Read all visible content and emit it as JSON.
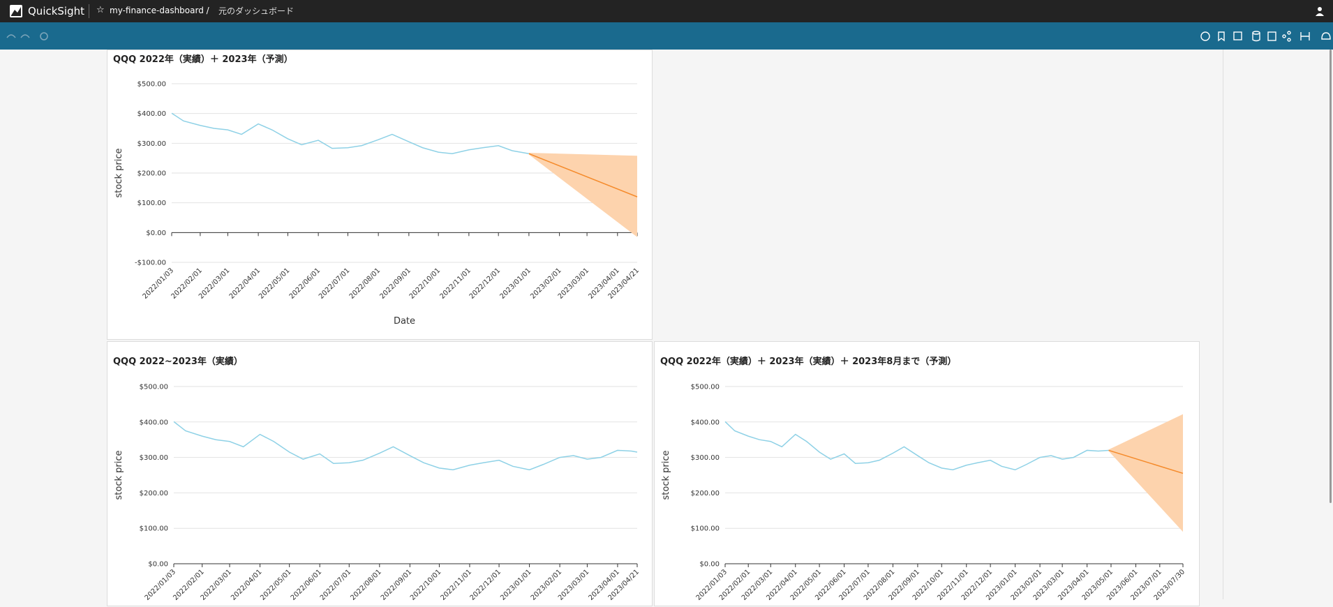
{
  "header": {
    "brand": "QuickSight",
    "dashboard": "my-finance-dashboard /",
    "link": "元のダッシュボード"
  },
  "chart_data": [
    {
      "type": "line",
      "title": "QQQ 2022年（実績）＋ 2023年（予測）",
      "y_label": "stock price",
      "x_label": "Date",
      "ylim": [
        -100,
        500
      ],
      "yticks": [
        {
          "value": -100,
          "label": "-$100.00"
        },
        {
          "value": 0,
          "label": "$0.00"
        },
        {
          "value": 100,
          "label": "$100.00"
        },
        {
          "value": 200,
          "label": "$200.00"
        },
        {
          "value": 300,
          "label": "$300.00"
        },
        {
          "value": 400,
          "label": "$400.00"
        },
        {
          "value": 500,
          "label": "$500.00"
        }
      ],
      "xlim": [
        "2022/01/03",
        "2023/04/21"
      ],
      "xticks": [
        "2022/01/03",
        "2022/02/01",
        "2022/03/01",
        "2022/04/01",
        "2022/05/01",
        "2022/06/01",
        "2022/07/01",
        "2022/08/01",
        "2022/09/01",
        "2022/10/01",
        "2022/11/01",
        "2022/12/01",
        "2023/01/01",
        "2023/02/01",
        "2023/03/01",
        "2023/04/01",
        "2023/04/21"
      ],
      "grid": true,
      "series": [
        {
          "color": "#8ed1e6",
          "x": [
            "2022/01/03",
            "2022/01/15",
            "2022/02/01",
            "2022/02/15",
            "2022/03/01",
            "2022/03/15",
            "2022/04/01",
            "2022/04/15",
            "2022/05/01",
            "2022/05/15",
            "2022/06/01",
            "2022/06/15",
            "2022/07/01",
            "2022/07/15",
            "2022/08/01",
            "2022/08/15",
            "2022/09/01",
            "2022/09/15",
            "2022/10/01",
            "2022/10/15",
            "2022/11/01",
            "2022/11/15",
            "2022/12/01",
            "2022/12/15",
            "2023/01/01"
          ],
          "values": [
            401,
            375,
            360,
            350,
            345,
            330,
            365,
            345,
            315,
            295,
            310,
            283,
            285,
            292,
            312,
            330,
            305,
            285,
            270,
            265,
            278,
            285,
            292,
            275,
            265
          ]
        },
        {
          "color": "#f58a2a",
          "band_color": "#fdd3ad",
          "x": [
            "2023/01/01",
            "2023/04/21"
          ],
          "values": [
            265,
            120
          ],
          "upper": [
            268,
            258
          ],
          "lower": [
            262,
            -15
          ]
        }
      ]
    },
    {
      "type": "line",
      "title": "QQQ 2022~2023年（実績）",
      "y_label": "stock price",
      "ylim": [
        0,
        500
      ],
      "yticks": [
        {
          "value": 0,
          "label": "$0.00"
        },
        {
          "value": 100,
          "label": "$100.00"
        },
        {
          "value": 200,
          "label": "$200.00"
        },
        {
          "value": 300,
          "label": "$300.00"
        },
        {
          "value": 400,
          "label": "$400.00"
        },
        {
          "value": 500,
          "label": "$500.00"
        }
      ],
      "xlim": [
        "2022/01/03",
        "2023/04/21"
      ],
      "xticks": [
        "2022/01/03",
        "2022/02/01",
        "2022/03/01",
        "2022/04/01",
        "2022/05/01",
        "2022/06/01",
        "2022/07/01",
        "2022/08/01",
        "2022/09/01",
        "2022/10/01",
        "2022/11/01",
        "2022/12/01",
        "2023/01/01",
        "2023/02/01",
        "2023/03/01",
        "2023/04/01",
        "2023/04/21"
      ],
      "grid": true,
      "series": [
        {
          "color": "#8ed1e6",
          "x": [
            "2022/01/03",
            "2022/01/15",
            "2022/02/01",
            "2022/02/15",
            "2022/03/01",
            "2022/03/15",
            "2022/04/01",
            "2022/04/15",
            "2022/05/01",
            "2022/05/15",
            "2022/06/01",
            "2022/06/15",
            "2022/07/01",
            "2022/07/15",
            "2022/08/01",
            "2022/08/15",
            "2022/09/01",
            "2022/09/15",
            "2022/10/01",
            "2022/10/15",
            "2022/11/01",
            "2022/11/15",
            "2022/12/01",
            "2022/12/15",
            "2023/01/01",
            "2023/01/15",
            "2023/02/01",
            "2023/02/15",
            "2023/03/01",
            "2023/03/15",
            "2023/04/01",
            "2023/04/15",
            "2023/04/21"
          ],
          "values": [
            401,
            375,
            360,
            350,
            345,
            330,
            365,
            345,
            315,
            295,
            310,
            283,
            285,
            292,
            312,
            330,
            305,
            285,
            270,
            265,
            278,
            285,
            292,
            275,
            265,
            280,
            300,
            305,
            295,
            300,
            320,
            318,
            315
          ]
        }
      ]
    },
    {
      "type": "line",
      "title": "QQQ 2022年（実績）＋ 2023年（実績）＋ 2023年8月まで（予測）",
      "y_label": "stock price",
      "ylim": [
        0,
        500
      ],
      "yticks": [
        {
          "value": 0,
          "label": "$0.00"
        },
        {
          "value": 100,
          "label": "$100.00"
        },
        {
          "value": 200,
          "label": "$200.00"
        },
        {
          "value": 300,
          "label": "$300.00"
        },
        {
          "value": 400,
          "label": "$400.00"
        },
        {
          "value": 500,
          "label": "$500.00"
        }
      ],
      "xlim": [
        "2022/01/03",
        "2023/07/30"
      ],
      "xticks": [
        "2022/01/03",
        "2022/02/01",
        "2022/03/01",
        "2022/04/01",
        "2022/05/01",
        "2022/06/01",
        "2022/07/01",
        "2022/08/01",
        "2022/09/01",
        "2022/10/01",
        "2022/11/01",
        "2022/12/01",
        "2023/01/01",
        "2023/02/01",
        "2023/03/01",
        "2023/04/01",
        "2023/05/01",
        "2023/06/01",
        "2023/07/01",
        "2023/07/30"
      ],
      "grid": true,
      "series": [
        {
          "color": "#8ed1e6",
          "x": [
            "2022/01/03",
            "2022/01/15",
            "2022/02/01",
            "2022/02/15",
            "2022/03/01",
            "2022/03/15",
            "2022/04/01",
            "2022/04/15",
            "2022/05/01",
            "2022/05/15",
            "2022/06/01",
            "2022/06/15",
            "2022/07/01",
            "2022/07/15",
            "2022/08/01",
            "2022/08/15",
            "2022/09/01",
            "2022/09/15",
            "2022/10/01",
            "2022/10/15",
            "2022/11/01",
            "2022/11/15",
            "2022/12/01",
            "2022/12/15",
            "2023/01/01",
            "2023/01/15",
            "2023/02/01",
            "2023/02/15",
            "2023/03/01",
            "2023/03/15",
            "2023/04/01",
            "2023/04/15",
            "2023/04/28"
          ],
          "values": [
            401,
            375,
            360,
            350,
            345,
            330,
            365,
            345,
            315,
            295,
            310,
            283,
            285,
            292,
            312,
            330,
            305,
            285,
            270,
            265,
            278,
            285,
            292,
            275,
            265,
            280,
            300,
            305,
            295,
            300,
            320,
            318,
            320
          ]
        },
        {
          "color": "#f58a2a",
          "band_color": "#fdd3ad",
          "x": [
            "2023/04/28",
            "2023/07/30"
          ],
          "values": [
            320,
            255
          ],
          "upper": [
            322,
            422
          ],
          "lower": [
            318,
            90
          ]
        }
      ]
    }
  ]
}
